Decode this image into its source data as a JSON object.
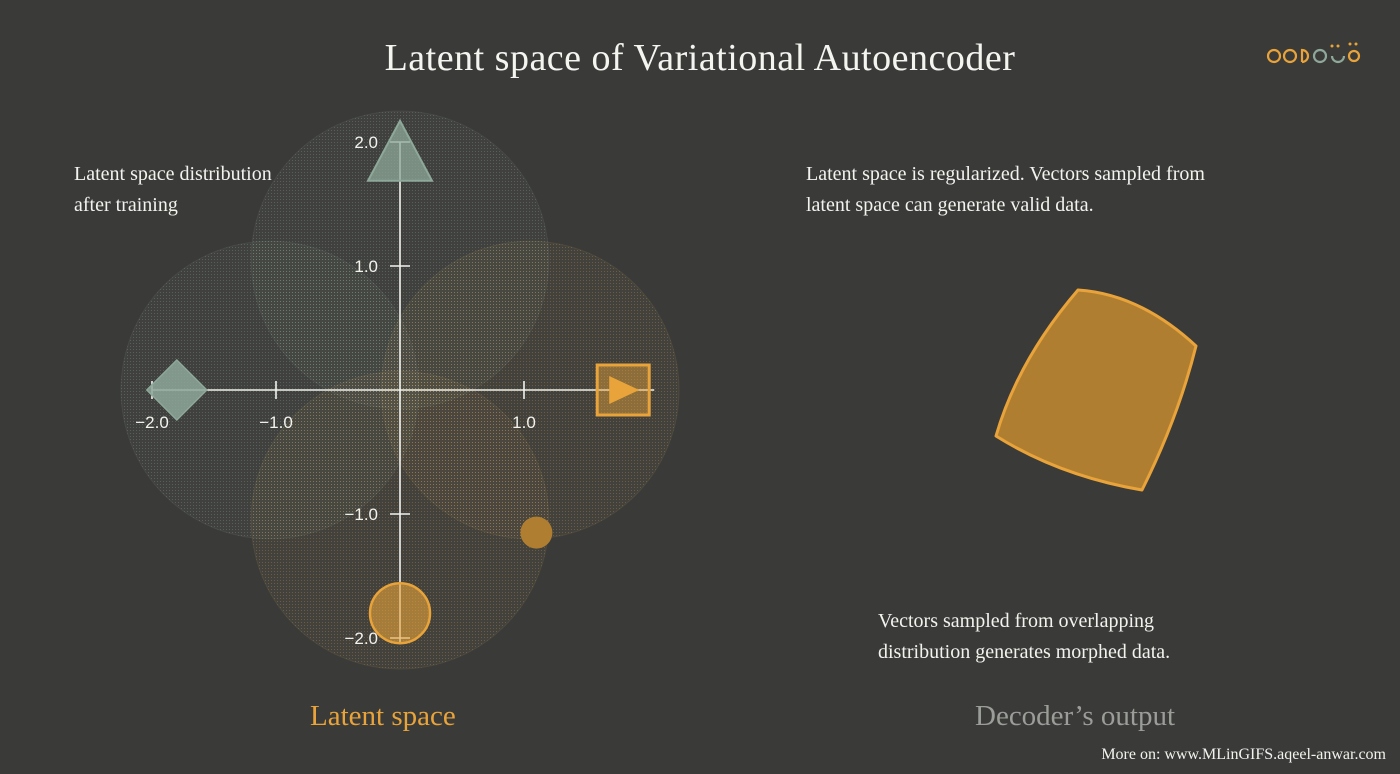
{
  "title": "Latent space of Variational Autoencoder",
  "notes": {
    "left": [
      "Latent space distribution",
      "after training"
    ],
    "right_top": [
      "Latent space is regularized. Vectors sampled from",
      "latent space can generate valid data."
    ],
    "right_bottom": [
      "Vectors sampled from overlapping",
      "distribution generates morphed data."
    ]
  },
  "captions": {
    "latent": "Latent space",
    "decoder": "Decoder’s output"
  },
  "footer": "More on: www.MLinGIFS.aqeel-anwar.com",
  "colors": {
    "background": "#3a3a38",
    "accent_orange": "#e8a33a",
    "muted_green": "#8ea89a",
    "axis": "#f2f2ee"
  },
  "latent_plot": {
    "x_ticks": [
      {
        "value": -2,
        "label": "−2.0"
      },
      {
        "value": -1,
        "label": "−1.0"
      },
      {
        "value": 1,
        "label": "1.0"
      }
    ],
    "y_ticks": [
      {
        "value": 2,
        "label": "2.0"
      },
      {
        "value": 1,
        "label": "1.0"
      },
      {
        "value": -1,
        "label": "−1.0"
      },
      {
        "value": -2,
        "label": "−2.0"
      }
    ],
    "distributions": [
      {
        "name": "triangle",
        "cx": 0.0,
        "cy": 1.05,
        "r": 1.2,
        "color": "#8ea89a"
      },
      {
        "name": "diamond",
        "cx": -1.05,
        "cy": 0.0,
        "r": 1.2,
        "color": "#8ea89a"
      },
      {
        "name": "square",
        "cx": 1.05,
        "cy": 0.0,
        "r": 1.2,
        "color": "#c8a464"
      },
      {
        "name": "circle",
        "cx": 0.0,
        "cy": -1.05,
        "r": 1.2,
        "color": "#c8a464"
      }
    ],
    "markers": [
      {
        "shape": "triangle",
        "x": 0.0,
        "y": 1.8
      },
      {
        "shape": "diamond",
        "x": -1.8,
        "y": 0.0
      },
      {
        "shape": "square",
        "x": 1.8,
        "y": 0.0
      },
      {
        "shape": "circle",
        "x": 0.0,
        "y": -1.8
      },
      {
        "shape": "sample-dot",
        "x": 1.1,
        "y": -1.15
      }
    ]
  },
  "icons": [
    "logo-icon",
    "play-arrow-icon"
  ]
}
